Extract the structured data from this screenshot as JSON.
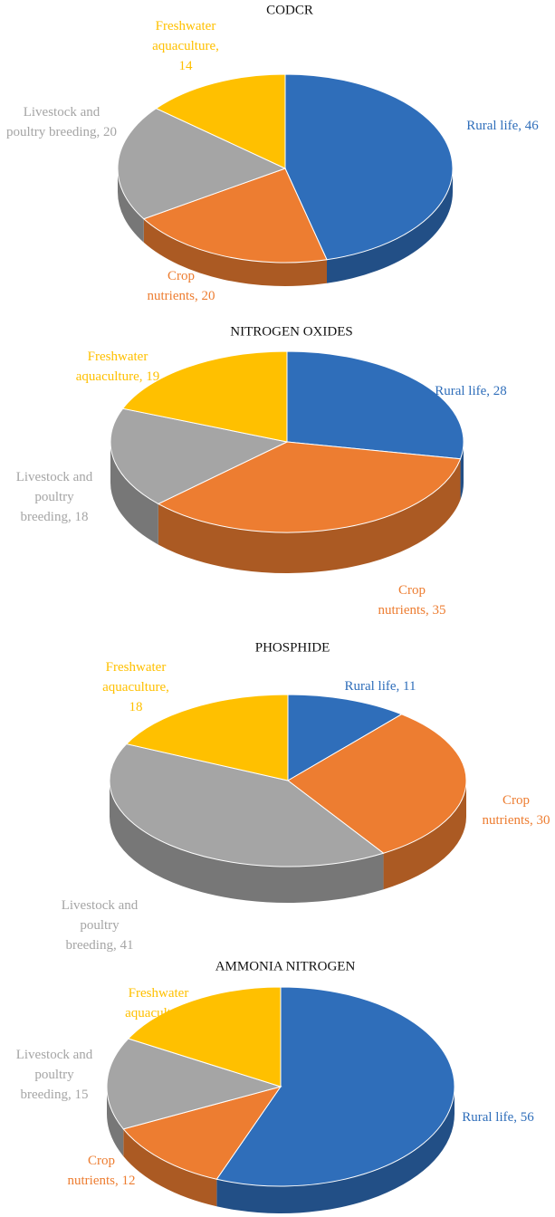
{
  "separator": ", ",
  "chart_data": [
    {
      "type": "pie",
      "title": "CODCR",
      "categories": [
        "Rural life",
        "Crop nutrients",
        "Livestock and poultry breeding",
        "Freshwater aquaculture"
      ],
      "values": [
        46,
        20,
        20,
        14
      ],
      "colors": [
        "#2f6eba",
        "#ed7d31",
        "#a5a5a5",
        "#ffc000"
      ]
    },
    {
      "type": "pie",
      "title": "NITROGEN OXIDES",
      "categories": [
        "Rural life",
        "Crop nutrients",
        "Livestock and poultry breeding",
        "Freshwater aquaculture"
      ],
      "values": [
        28,
        35,
        18,
        19
      ],
      "colors": [
        "#2f6eba",
        "#ed7d31",
        "#a5a5a5",
        "#ffc000"
      ]
    },
    {
      "type": "pie",
      "title": "PHOSPHIDE",
      "categories": [
        "Rural life",
        "Crop nutrients",
        "Livestock and poultry breeding",
        "Freshwater aquaculture"
      ],
      "values": [
        11,
        30,
        41,
        18
      ],
      "colors": [
        "#2f6eba",
        "#ed7d31",
        "#a5a5a5",
        "#ffc000"
      ]
    },
    {
      "type": "pie",
      "title": "AMMONIA NITROGEN",
      "categories": [
        "Rural life",
        "Crop nutrients",
        "Livestock and poultry breeding",
        "Freshwater aquaculture"
      ],
      "values": [
        56,
        12,
        15,
        17
      ],
      "colors": [
        "#2f6eba",
        "#ed7d31",
        "#a5a5a5",
        "#ffc000"
      ]
    }
  ]
}
